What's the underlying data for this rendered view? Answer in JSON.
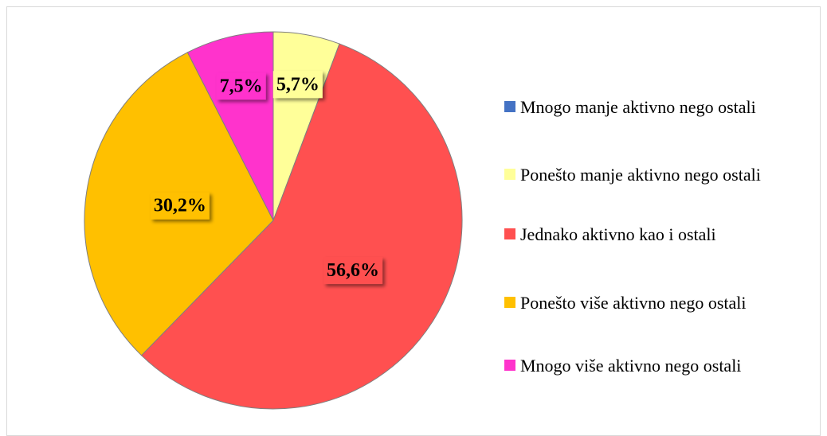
{
  "chart_data": {
    "type": "pie",
    "categories": [
      "Mnogo manje aktivno nego ostali",
      "Ponešto manje aktivno nego ostali",
      "Jednako aktivno kao i ostali",
      "Ponešto više aktivno nego ostali",
      "Mnogo više aktivno nego ostali"
    ],
    "values": [
      0,
      5.7,
      56.6,
      30.2,
      7.5
    ],
    "value_labels": [
      null,
      "5,7%",
      "56,6%",
      "30,2%",
      "7,5%"
    ],
    "colors": [
      "#4472c4",
      "#ffff99",
      "#ff5050",
      "#ffc000",
      "#ff33cc"
    ]
  }
}
